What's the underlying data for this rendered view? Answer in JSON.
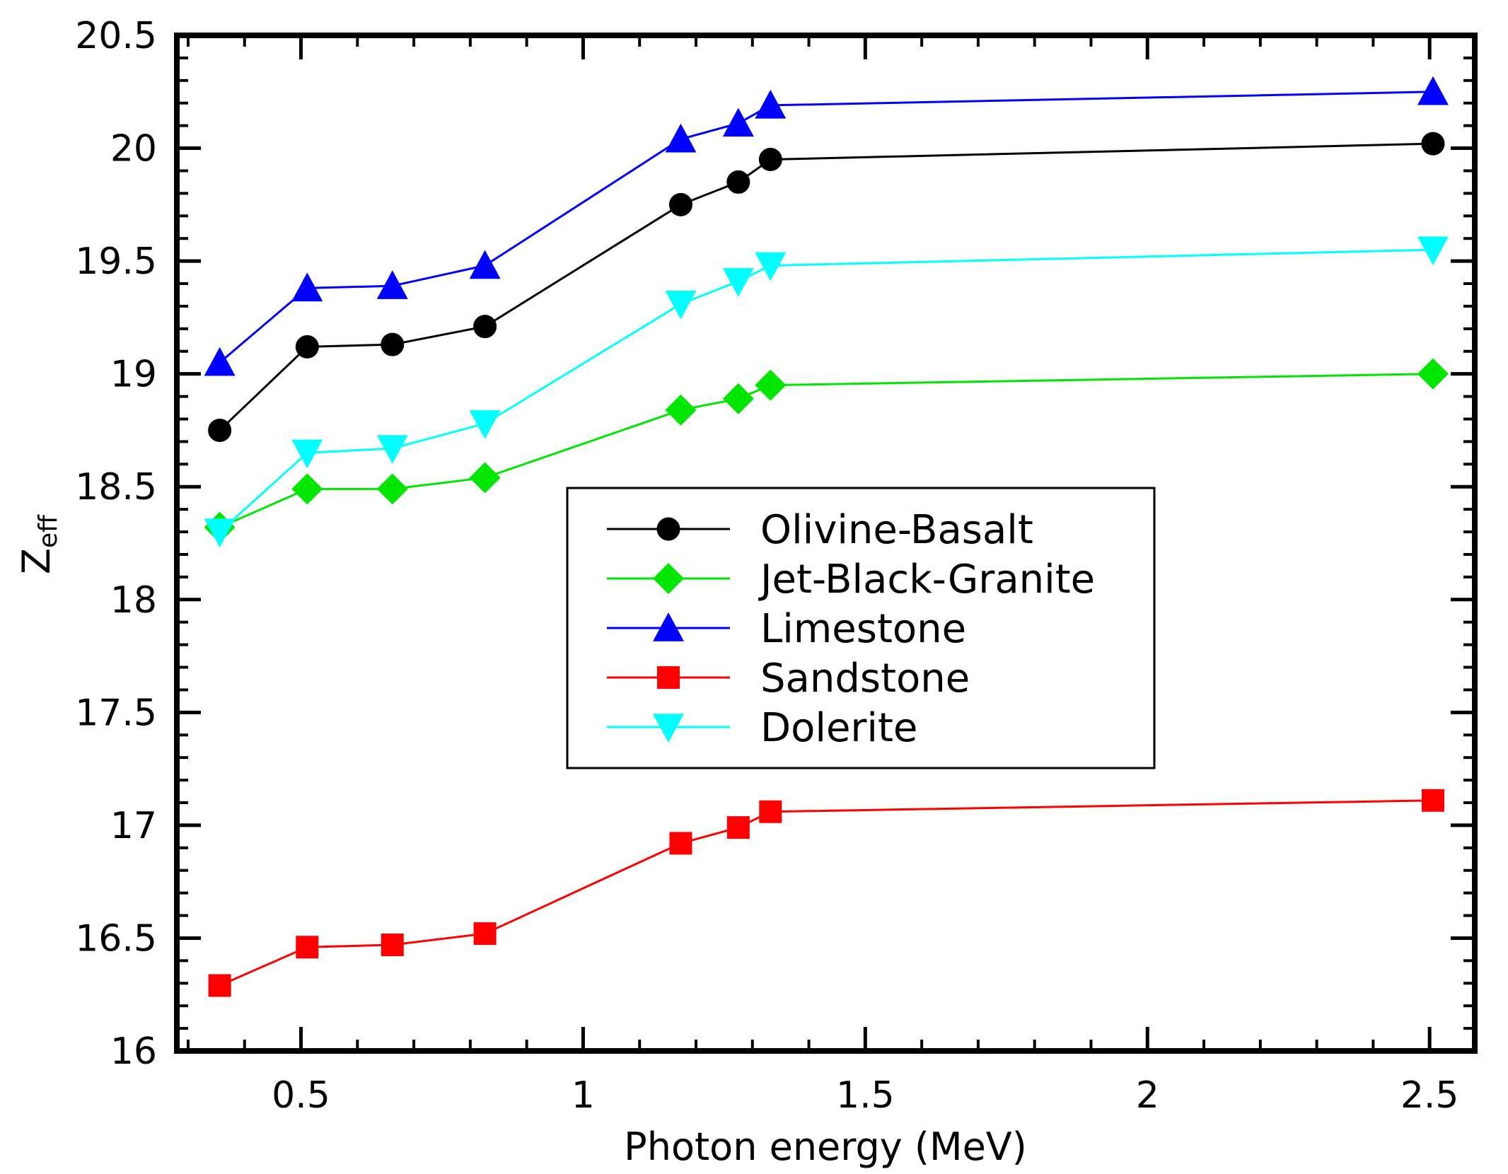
{
  "chart_data": {
    "type": "line",
    "title": "",
    "xlabel": "Photon energy (MeV)",
    "ylabel": "Z",
    "ylabel_sub": "eff",
    "xlim": [
      0.28,
      2.58
    ],
    "ylim": [
      16,
      20.5
    ],
    "xticks": [
      0.5,
      1,
      1.5,
      2,
      2.5
    ],
    "xtick_labels": [
      "0.5",
      "1",
      "1.5",
      "2",
      "2.5"
    ],
    "yticks": [
      16,
      16.5,
      17,
      17.5,
      18,
      18.5,
      19,
      19.5,
      20,
      20.5
    ],
    "ytick_labels": [
      "16",
      "16.5",
      "17",
      "17.5",
      "18",
      "18.5",
      "19",
      "19.5",
      "20",
      "20.5"
    ],
    "x": [
      0.356,
      0.511,
      0.662,
      0.826,
      1.173,
      1.275,
      1.332,
      2.506
    ],
    "legend_position": "center",
    "series": [
      {
        "name": "Olivine-Basalt",
        "marker": "circle",
        "color": "#000000",
        "values": [
          18.75,
          19.12,
          19.13,
          19.21,
          19.75,
          19.85,
          19.95,
          20.02
        ]
      },
      {
        "name": "Jet-Black-Granite",
        "marker": "diamond",
        "color": "#00e600",
        "values": [
          18.32,
          18.49,
          18.49,
          18.54,
          18.84,
          18.89,
          18.95,
          19.0
        ]
      },
      {
        "name": "Limestone",
        "marker": "triangle-up",
        "color": "#0000ff",
        "values": [
          19.05,
          19.38,
          19.39,
          19.48,
          20.04,
          20.11,
          20.19,
          20.25
        ]
      },
      {
        "name": "Sandstone",
        "marker": "square",
        "color": "#ff0000",
        "values": [
          16.29,
          16.46,
          16.47,
          16.52,
          16.92,
          16.99,
          17.06,
          17.11
        ]
      },
      {
        "name": "Dolerite",
        "marker": "triangle-down",
        "color": "#00ffff",
        "values": [
          18.3,
          18.65,
          18.67,
          18.78,
          19.31,
          19.41,
          19.48,
          19.55
        ]
      }
    ]
  }
}
